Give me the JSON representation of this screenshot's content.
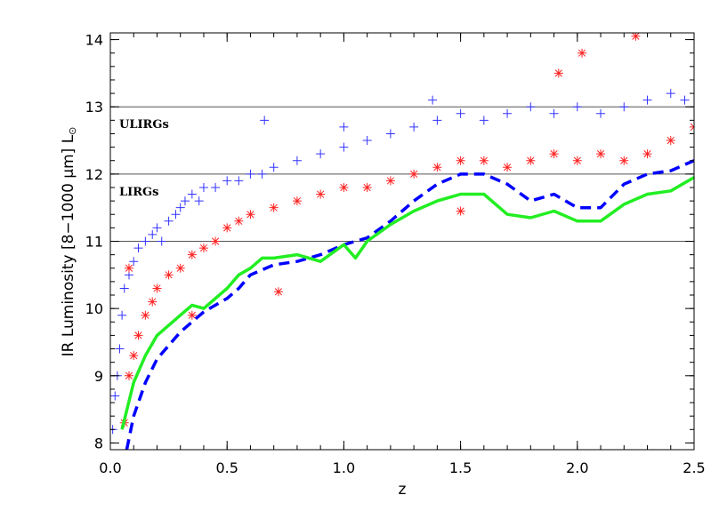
{
  "chart_data": {
    "type": "scatter",
    "title": "",
    "xlabel": "z",
    "ylabel": "IR Luminosity [8−1000 μm] L",
    "ylabel_unit_symbol": "⊙",
    "xlim": [
      0.0,
      2.5
    ],
    "ylim": [
      7.9,
      14.1
    ],
    "x_ticks": [
      0.0,
      0.5,
      1.0,
      1.5,
      2.0,
      2.5
    ],
    "x_tick_labels": [
      "0.0",
      "0.5",
      "1.0",
      "1.5",
      "2.0",
      "2.5"
    ],
    "y_ticks": [
      8,
      9,
      10,
      11,
      12,
      13,
      14
    ],
    "y_tick_labels": [
      "8",
      "9",
      "10",
      "11",
      "12",
      "13",
      "14"
    ],
    "grid": false,
    "reference_lines": [
      {
        "y": 11
      },
      {
        "y": 12,
        "label": "LIRGs"
      },
      {
        "y": 13,
        "label": "ULIRGs"
      }
    ],
    "series": [
      {
        "kind": "scatter",
        "marker": "plus",
        "color": "#3333ff",
        "points": [
          [
            0.01,
            8.2
          ],
          [
            0.02,
            8.7
          ],
          [
            0.03,
            9.0
          ],
          [
            0.04,
            9.4
          ],
          [
            0.05,
            9.9
          ],
          [
            0.06,
            10.3
          ],
          [
            0.08,
            10.5
          ],
          [
            0.1,
            10.7
          ],
          [
            0.12,
            10.9
          ],
          [
            0.15,
            11.0
          ],
          [
            0.18,
            11.1
          ],
          [
            0.2,
            11.2
          ],
          [
            0.22,
            11.0
          ],
          [
            0.25,
            11.3
          ],
          [
            0.28,
            11.4
          ],
          [
            0.3,
            11.5
          ],
          [
            0.32,
            11.6
          ],
          [
            0.35,
            11.7
          ],
          [
            0.38,
            11.6
          ],
          [
            0.4,
            11.8
          ],
          [
            0.45,
            11.8
          ],
          [
            0.5,
            11.9
          ],
          [
            0.55,
            11.9
          ],
          [
            0.6,
            12.0
          ],
          [
            0.65,
            12.0
          ],
          [
            0.7,
            12.1
          ],
          [
            0.8,
            12.2
          ],
          [
            0.9,
            12.3
          ],
          [
            1.0,
            12.4
          ],
          [
            1.1,
            12.5
          ],
          [
            1.2,
            12.6
          ],
          [
            1.3,
            12.7
          ],
          [
            1.4,
            12.8
          ],
          [
            1.5,
            12.9
          ],
          [
            1.6,
            12.8
          ],
          [
            1.7,
            12.9
          ],
          [
            1.8,
            13.0
          ],
          [
            1.9,
            12.9
          ],
          [
            2.0,
            13.0
          ],
          [
            2.1,
            12.9
          ],
          [
            2.2,
            13.0
          ],
          [
            2.3,
            13.1
          ],
          [
            2.4,
            13.2
          ],
          [
            0.66,
            12.8
          ],
          [
            1.0,
            12.7
          ],
          [
            1.38,
            13.1
          ],
          [
            2.46,
            13.1
          ]
        ]
      },
      {
        "kind": "scatter",
        "marker": "asterisk",
        "color": "#ff2222",
        "points": [
          [
            0.06,
            8.3
          ],
          [
            0.08,
            9.0
          ],
          [
            0.1,
            9.3
          ],
          [
            0.12,
            9.6
          ],
          [
            0.15,
            9.9
          ],
          [
            0.18,
            10.1
          ],
          [
            0.2,
            10.3
          ],
          [
            0.25,
            10.5
          ],
          [
            0.3,
            10.6
          ],
          [
            0.35,
            10.8
          ],
          [
            0.4,
            10.9
          ],
          [
            0.45,
            11.0
          ],
          [
            0.5,
            11.2
          ],
          [
            0.55,
            11.3
          ],
          [
            0.6,
            11.4
          ],
          [
            0.7,
            11.5
          ],
          [
            0.8,
            11.6
          ],
          [
            0.9,
            11.7
          ],
          [
            1.0,
            11.8
          ],
          [
            1.1,
            11.8
          ],
          [
            1.2,
            11.9
          ],
          [
            1.3,
            12.0
          ],
          [
            1.4,
            12.1
          ],
          [
            1.5,
            12.2
          ],
          [
            1.6,
            12.2
          ],
          [
            1.7,
            12.1
          ],
          [
            1.8,
            12.2
          ],
          [
            1.9,
            12.3
          ],
          [
            2.0,
            12.2
          ],
          [
            2.1,
            12.3
          ],
          [
            2.2,
            12.2
          ],
          [
            2.3,
            12.3
          ],
          [
            2.4,
            12.5
          ],
          [
            2.5,
            12.7
          ],
          [
            0.08,
            10.6
          ],
          [
            0.72,
            10.25
          ],
          [
            0.35,
            9.9
          ],
          [
            1.5,
            11.45
          ],
          [
            1.92,
            13.5
          ],
          [
            2.02,
            13.8
          ],
          [
            2.25,
            14.05
          ]
        ]
      },
      {
        "kind": "line",
        "style": "dashed",
        "color": "#0000ff",
        "points": [
          [
            0.07,
            7.9
          ],
          [
            0.1,
            8.4
          ],
          [
            0.15,
            8.9
          ],
          [
            0.2,
            9.25
          ],
          [
            0.3,
            9.65
          ],
          [
            0.4,
            9.95
          ],
          [
            0.5,
            10.15
          ],
          [
            0.55,
            10.3
          ],
          [
            0.6,
            10.5
          ],
          [
            0.7,
            10.65
          ],
          [
            0.8,
            10.7
          ],
          [
            0.9,
            10.8
          ],
          [
            1.0,
            10.95
          ],
          [
            1.1,
            11.05
          ],
          [
            1.2,
            11.3
          ],
          [
            1.3,
            11.6
          ],
          [
            1.4,
            11.85
          ],
          [
            1.5,
            12.0
          ],
          [
            1.6,
            12.0
          ],
          [
            1.7,
            11.85
          ],
          [
            1.8,
            11.6
          ],
          [
            1.9,
            11.7
          ],
          [
            2.0,
            11.5
          ],
          [
            2.1,
            11.5
          ],
          [
            2.2,
            11.85
          ],
          [
            2.3,
            12.0
          ],
          [
            2.4,
            12.05
          ],
          [
            2.5,
            12.2
          ]
        ]
      },
      {
        "kind": "line",
        "style": "solid",
        "color": "#22ee22",
        "points": [
          [
            0.05,
            8.2
          ],
          [
            0.1,
            8.9
          ],
          [
            0.15,
            9.3
          ],
          [
            0.2,
            9.6
          ],
          [
            0.3,
            9.9
          ],
          [
            0.35,
            10.05
          ],
          [
            0.4,
            10.0
          ],
          [
            0.5,
            10.3
          ],
          [
            0.55,
            10.5
          ],
          [
            0.6,
            10.6
          ],
          [
            0.65,
            10.75
          ],
          [
            0.7,
            10.75
          ],
          [
            0.8,
            10.8
          ],
          [
            0.9,
            10.7
          ],
          [
            1.0,
            10.95
          ],
          [
            1.05,
            10.75
          ],
          [
            1.1,
            11.0
          ],
          [
            1.2,
            11.25
          ],
          [
            1.3,
            11.45
          ],
          [
            1.4,
            11.6
          ],
          [
            1.5,
            11.7
          ],
          [
            1.6,
            11.7
          ],
          [
            1.7,
            11.4
          ],
          [
            1.8,
            11.35
          ],
          [
            1.9,
            11.45
          ],
          [
            2.0,
            11.3
          ],
          [
            2.1,
            11.3
          ],
          [
            2.2,
            11.55
          ],
          [
            2.3,
            11.7
          ],
          [
            2.4,
            11.75
          ],
          [
            2.5,
            11.95
          ]
        ]
      }
    ]
  }
}
